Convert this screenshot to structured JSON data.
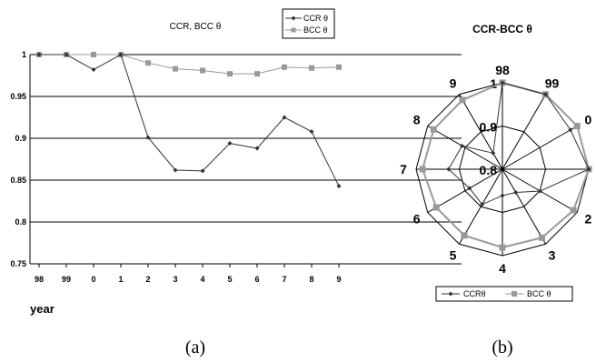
{
  "chart_data": [
    {
      "type": "line",
      "title": "CCR, BCC θ",
      "xlabel": "year",
      "ylabel": "",
      "categories": [
        "98",
        "99",
        "0",
        "1",
        "2",
        "3",
        "4",
        "5",
        "6",
        "7",
        "8",
        "9"
      ],
      "ylim": [
        0.75,
        1
      ],
      "yticks": [
        "1",
        "0.95",
        "0.9",
        "0.85",
        "0.8",
        "0.75"
      ],
      "grid": true,
      "legend_position": "top-right",
      "series": [
        {
          "name": "CCR θ",
          "color": "#333333",
          "marker": "diamond",
          "values": [
            1.0,
            1.0,
            0.982,
            1.0,
            0.901,
            0.862,
            0.861,
            0.894,
            0.888,
            0.925,
            0.908,
            0.843
          ]
        },
        {
          "name": "BCC θ",
          "color": "#999999",
          "marker": "square",
          "values": [
            1.0,
            1.0,
            1.0,
            1.0,
            0.99,
            0.983,
            0.981,
            0.977,
            0.977,
            0.985,
            0.984,
            0.985
          ]
        }
      ]
    },
    {
      "type": "radar",
      "title": "CCR-BCC θ",
      "categories": [
        "98",
        "99",
        "0",
        "1",
        "2",
        "3",
        "4",
        "5",
        "6",
        "7",
        "8",
        "9"
      ],
      "rlim": [
        0.8,
        1
      ],
      "ring_labels": [
        "1",
        "0.9",
        "0.8"
      ],
      "legend_position": "bottom",
      "series": [
        {
          "name": "CCRθ",
          "color": "#333333",
          "marker": "diamond",
          "values": [
            1.0,
            1.0,
            0.982,
            1.0,
            0.901,
            0.862,
            0.861,
            0.894,
            0.888,
            0.925,
            0.908,
            0.843
          ]
        },
        {
          "name": "BCC θ",
          "color": "#999999",
          "marker": "square",
          "values": [
            1.0,
            1.0,
            1.0,
            1.0,
            0.99,
            0.983,
            0.981,
            0.977,
            0.977,
            0.985,
            0.984,
            0.985
          ]
        }
      ]
    }
  ],
  "captions": [
    "(a)",
    "(b)"
  ]
}
